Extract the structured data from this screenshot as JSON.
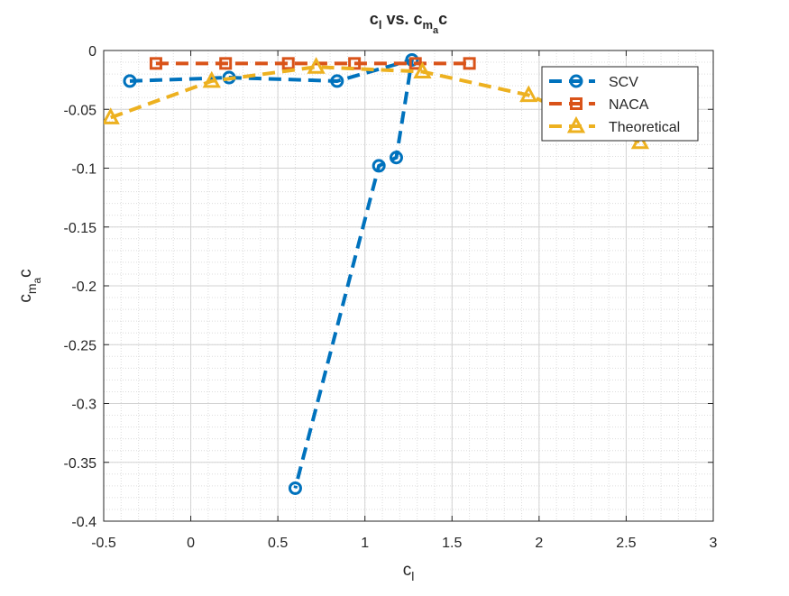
{
  "chart_data": {
    "type": "line",
    "title": {
      "main": "c",
      "sub1": "l",
      "mid": " vs. c",
      "sub2": "m",
      "subsub2": "a",
      "end": "c"
    },
    "xlabel": {
      "main": "c",
      "sub": "l"
    },
    "ylabel": {
      "main": "c",
      "sub": "m",
      "subsub": "a",
      "end": "c"
    },
    "xlim": [
      -0.5,
      3
    ],
    "ylim": [
      -0.4,
      0
    ],
    "xticks": [
      -0.5,
      0,
      0.5,
      1,
      1.5,
      2,
      2.5,
      3
    ],
    "xtick_labels": [
      "-0.5",
      "0",
      "0.5",
      "1",
      "1.5",
      "2",
      "2.5",
      "3"
    ],
    "yticks": [
      0,
      -0.05,
      -0.1,
      -0.15,
      -0.2,
      -0.25,
      -0.3,
      -0.35,
      -0.4
    ],
    "ytick_labels": [
      "0",
      "-0.05",
      "-0.1",
      "-0.15",
      "-0.2",
      "-0.25",
      "-0.3",
      "-0.35",
      "-0.4"
    ],
    "grid": true,
    "minor_grid": true,
    "legend_position": "top-right",
    "series": [
      {
        "name": "SCV",
        "color": "#0072BD",
        "marker": "circle",
        "x": [
          -0.35,
          0.22,
          0.84,
          1.27,
          1.18,
          1.08,
          0.6
        ],
        "y": [
          -0.026,
          -0.023,
          -0.026,
          -0.008,
          -0.091,
          -0.098,
          -0.372
        ]
      },
      {
        "name": "NACA",
        "color": "#D95319",
        "marker": "square",
        "x": [
          -0.2,
          0.2,
          0.56,
          0.94,
          1.29,
          1.6
        ],
        "y": [
          -0.011,
          -0.011,
          -0.011,
          -0.011,
          -0.011,
          -0.011
        ]
      },
      {
        "name": "Theoretical",
        "color": "#EDB120",
        "marker": "triangle",
        "x": [
          -0.46,
          0.12,
          0.72,
          1.33,
          1.94,
          2.58
        ],
        "y": [
          -0.057,
          -0.026,
          -0.014,
          -0.018,
          -0.038,
          -0.078
        ]
      }
    ]
  }
}
